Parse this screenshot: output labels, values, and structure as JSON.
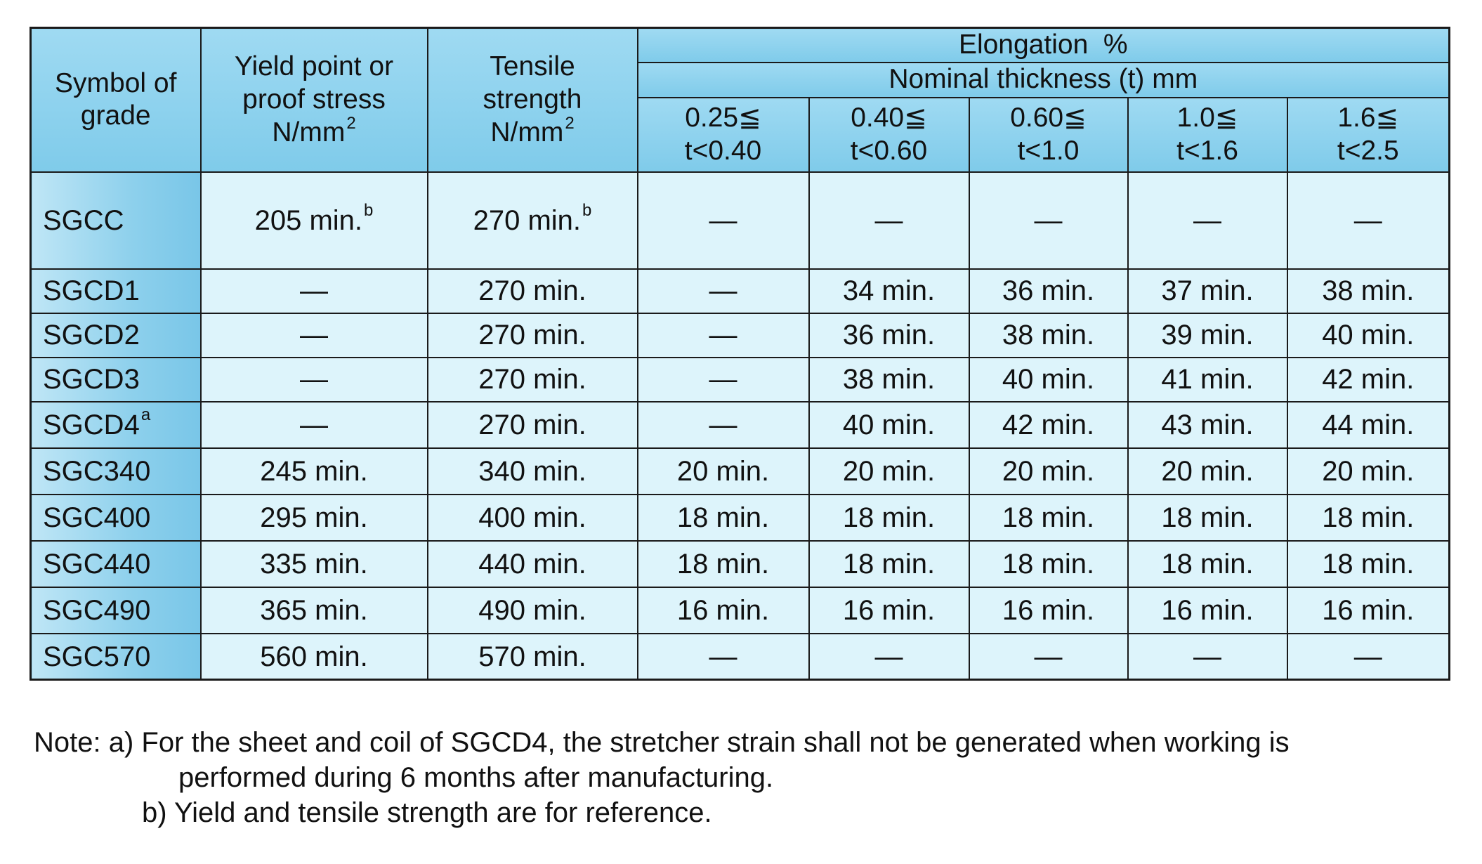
{
  "table": {
    "headers": {
      "grade_line1": "Symbol of",
      "grade_line2": "grade",
      "yield_line1": "Yield point or",
      "yield_line2": "proof stress",
      "yield_unit": "N/mm",
      "yield_unit_sup": "2",
      "tensile_line1": "Tensile",
      "tensile_line2": "strength",
      "tensile_unit": "N/mm",
      "tensile_unit_sup": "2",
      "elongation": "Elongation  %",
      "nominal_thickness": "Nominal thickness (t) mm",
      "thickness_ranges": [
        {
          "top": "0.25≦",
          "bottom": "t<0.40"
        },
        {
          "top": "0.40≦",
          "bottom": "t<0.60"
        },
        {
          "top": "0.60≦",
          "bottom": "t<1.0"
        },
        {
          "top": "1.0≦",
          "bottom": "t<1.6"
        },
        {
          "top": "1.6≦",
          "bottom": "t<2.5"
        }
      ]
    },
    "rows": [
      {
        "grade": "SGCC",
        "grade_sup": "",
        "yield": "205 min.",
        "yield_sup": "b",
        "tensile": "270 min.",
        "tensile_sup": "b",
        "elong": [
          "—",
          "—",
          "—",
          "—",
          "—"
        ]
      },
      {
        "grade": "SGCD1",
        "grade_sup": "",
        "yield": "—",
        "yield_sup": "",
        "tensile": "270 min.",
        "tensile_sup": "",
        "elong": [
          "—",
          "34 min.",
          "36 min.",
          "37 min.",
          "38 min."
        ]
      },
      {
        "grade": "SGCD2",
        "grade_sup": "",
        "yield": "—",
        "yield_sup": "",
        "tensile": "270 min.",
        "tensile_sup": "",
        "elong": [
          "—",
          "36 min.",
          "38 min.",
          "39 min.",
          "40 min."
        ]
      },
      {
        "grade": "SGCD3",
        "grade_sup": "",
        "yield": "—",
        "yield_sup": "",
        "tensile": "270 min.",
        "tensile_sup": "",
        "elong": [
          "—",
          "38 min.",
          "40 min.",
          "41 min.",
          "42 min."
        ]
      },
      {
        "grade": "SGCD4",
        "grade_sup": "a",
        "yield": "—",
        "yield_sup": "",
        "tensile": "270 min.",
        "tensile_sup": "",
        "elong": [
          "—",
          "40 min.",
          "42 min.",
          "43 min.",
          "44 min."
        ]
      },
      {
        "grade": "SGC340",
        "grade_sup": "",
        "yield": "245 min.",
        "yield_sup": "",
        "tensile": "340 min.",
        "tensile_sup": "",
        "elong": [
          "20 min.",
          "20 min.",
          "20 min.",
          "20 min.",
          "20 min."
        ]
      },
      {
        "grade": "SGC400",
        "grade_sup": "",
        "yield": "295 min.",
        "yield_sup": "",
        "tensile": "400 min.",
        "tensile_sup": "",
        "elong": [
          "18 min.",
          "18 min.",
          "18 min.",
          "18 min.",
          "18 min."
        ]
      },
      {
        "grade": "SGC440",
        "grade_sup": "",
        "yield": "335 min.",
        "yield_sup": "",
        "tensile": "440 min.",
        "tensile_sup": "",
        "elong": [
          "18 min.",
          "18 min.",
          "18 min.",
          "18 min.",
          "18 min."
        ]
      },
      {
        "grade": "SGC490",
        "grade_sup": "",
        "yield": "365 min.",
        "yield_sup": "",
        "tensile": "490 min.",
        "tensile_sup": "",
        "elong": [
          "16 min.",
          "16 min.",
          "16 min.",
          "16 min.",
          "16 min."
        ]
      },
      {
        "grade": "SGC570",
        "grade_sup": "",
        "yield": "560 min.",
        "yield_sup": "",
        "tensile": "570 min.",
        "tensile_sup": "",
        "elong": [
          "—",
          "—",
          "—",
          "—",
          "—"
        ]
      }
    ]
  },
  "notes": {
    "a_line1": "Note: a) For the sheet and coil of SGCD4, the stretcher strain shall not be generated when working is",
    "a_line2": "performed during 6 months after manufacturing.",
    "b_line": "b) Yield and tensile strength are for reference."
  }
}
